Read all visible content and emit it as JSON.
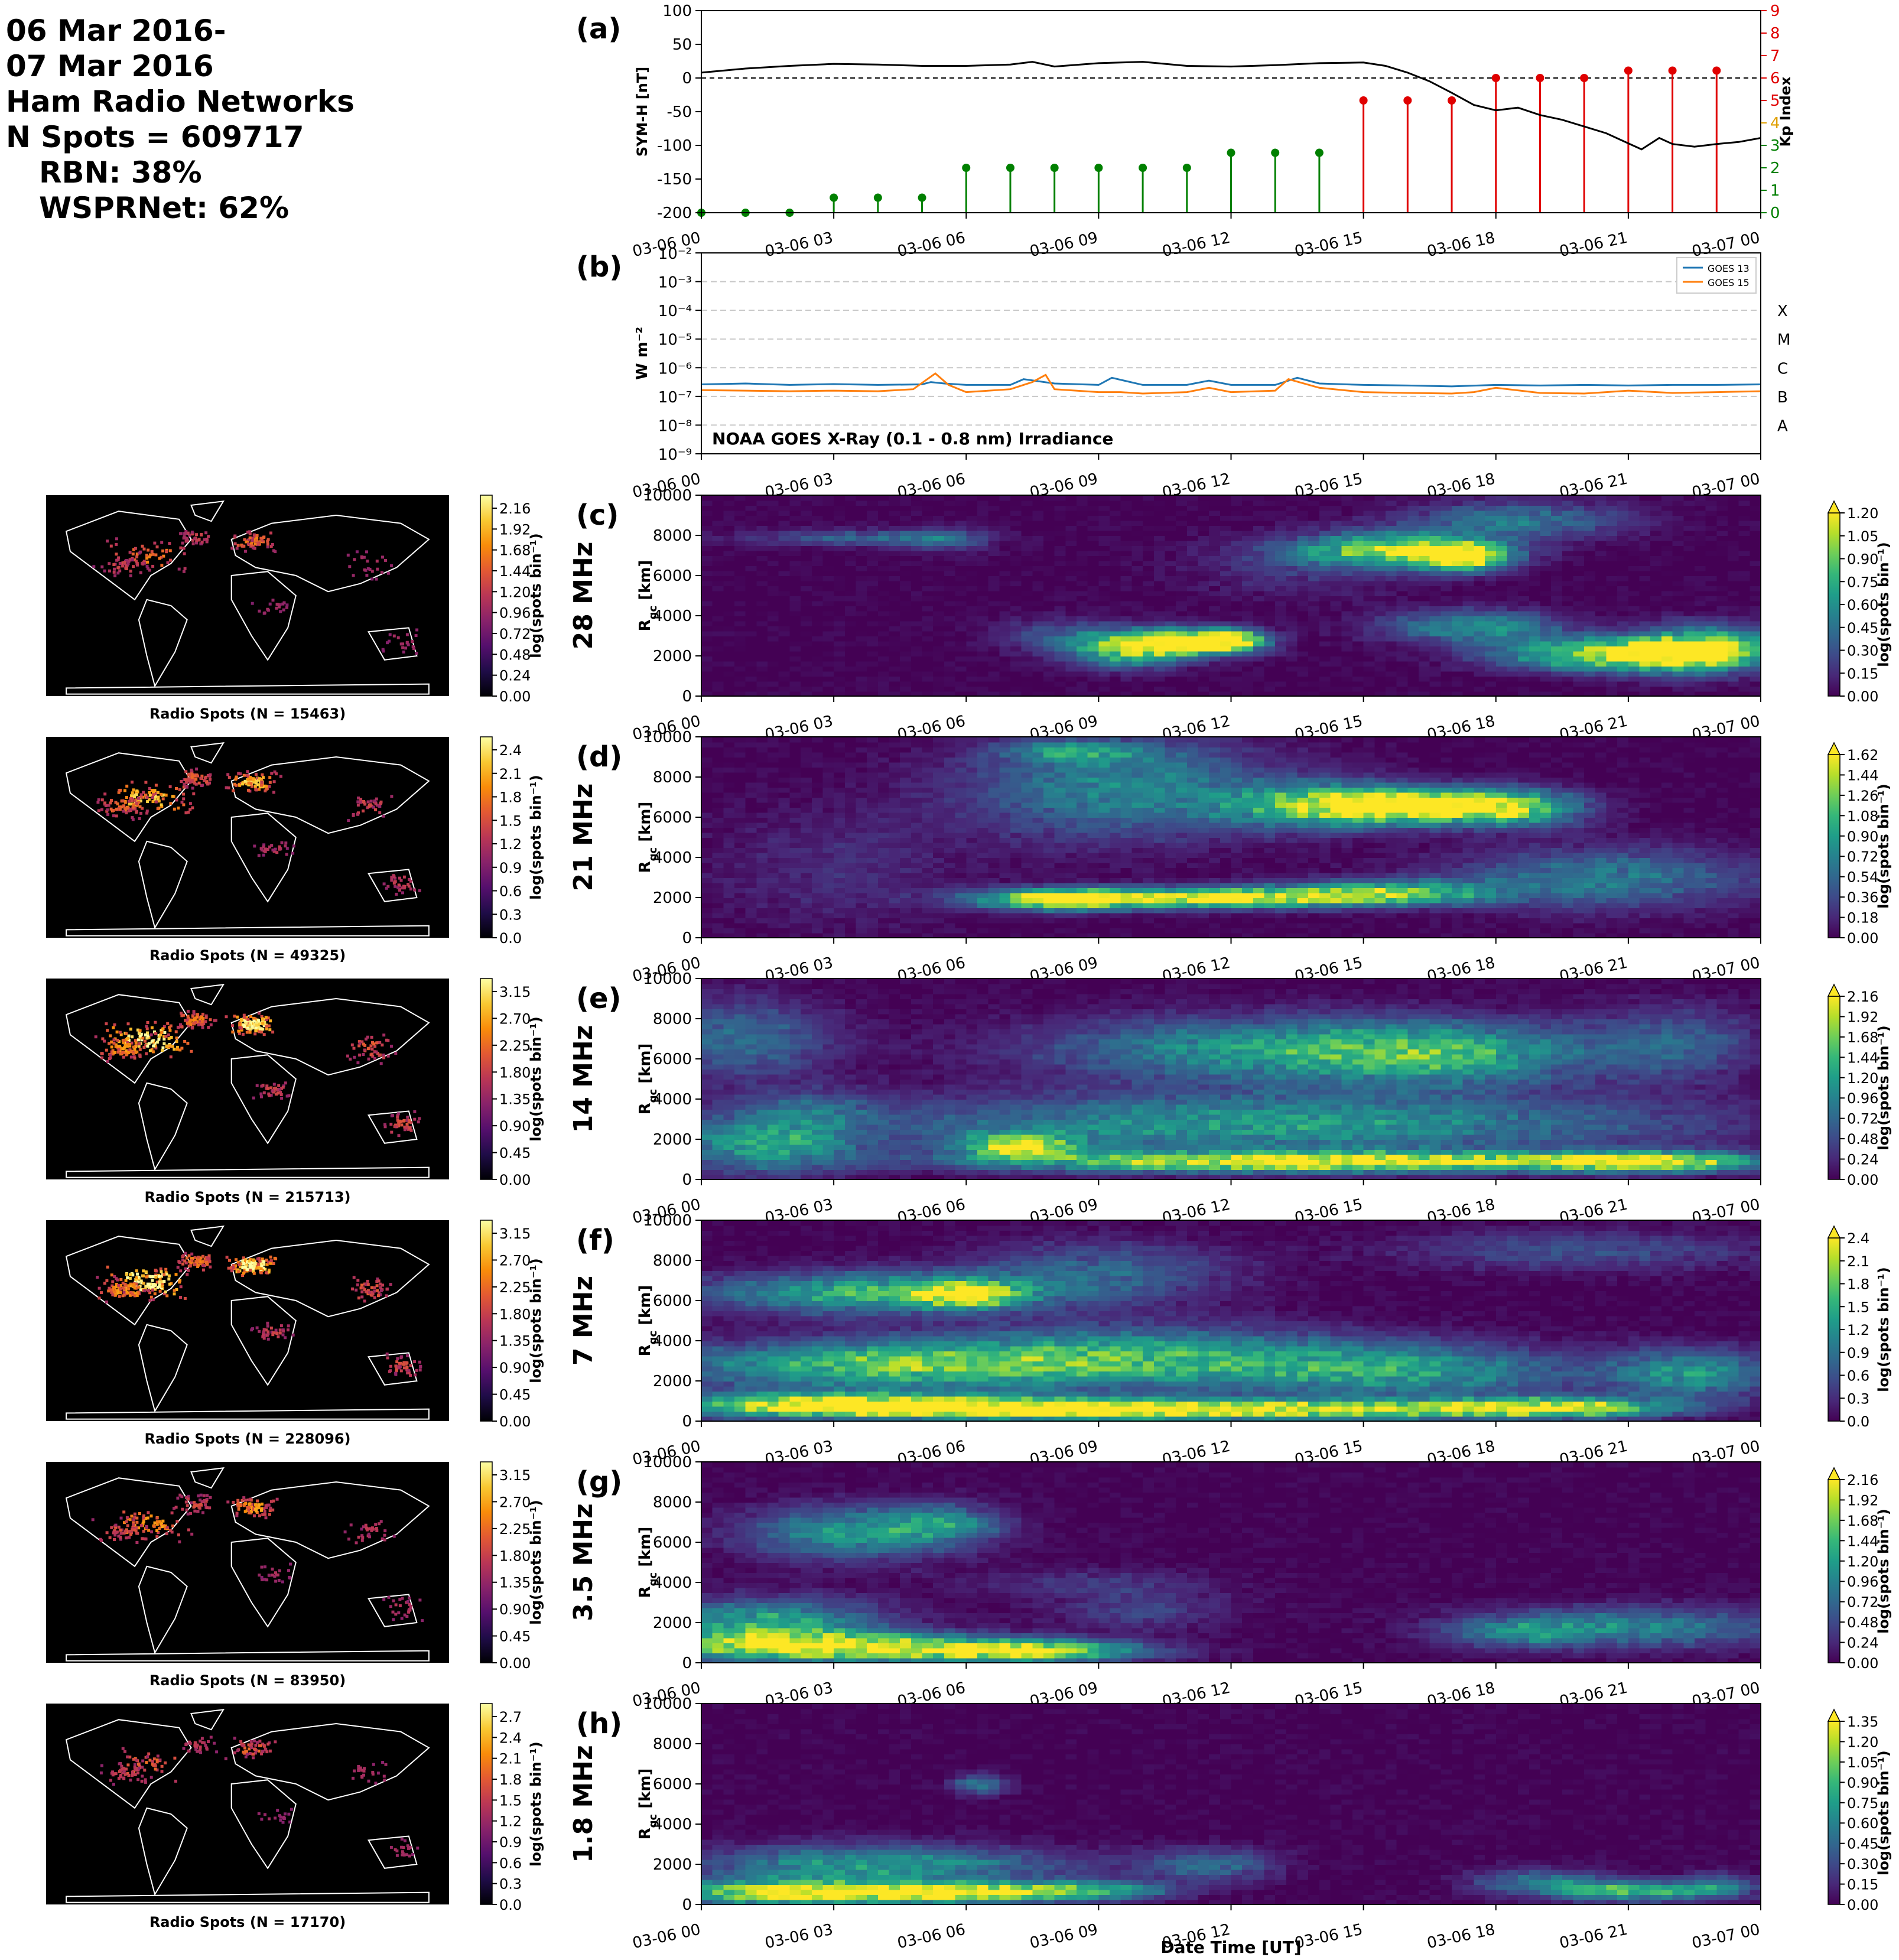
{
  "header": {
    "date_line1": "06 Mar 2016-",
    "date_line2": "07 Mar 2016",
    "network_title": "Ham Radio Networks",
    "n_spots": "N Spots = 609717",
    "rbn": "RBN: 38%",
    "wsprnet": "WSPRNet: 62%"
  },
  "time_ticks": [
    "03-06 00",
    "03-06 03",
    "03-06 06",
    "03-06 09",
    "03-06 12",
    "03-06 15",
    "03-06 18",
    "03-06 21",
    "03-07 00"
  ],
  "chart_data": [
    {
      "panel": "(a)",
      "type": "line",
      "ylabel": "SYM-H [nT]",
      "ylim": [
        -200,
        100
      ],
      "yticks": [
        100,
        50,
        0,
        -50,
        -100,
        -150,
        -200
      ],
      "x_hours": [
        0,
        1,
        2,
        3,
        4,
        5,
        6,
        7,
        7.5,
        8,
        9,
        10,
        11,
        12,
        13,
        14,
        15,
        15.5,
        16,
        16.5,
        17,
        17.5,
        18,
        18.5,
        19,
        19.5,
        20,
        20.5,
        21,
        21.3,
        21.7,
        22,
        22.5,
        23,
        23.5,
        24
      ],
      "symh": [
        8,
        14,
        18,
        21,
        20,
        18,
        18,
        20,
        24,
        17,
        22,
        24,
        18,
        17,
        19,
        22,
        23,
        18,
        8,
        -5,
        -22,
        -40,
        -48,
        -44,
        -55,
        -62,
        -72,
        -82,
        -97,
        -106,
        -89,
        -98,
        -102,
        -98,
        -95,
        -89
      ],
      "secondary_axis": {
        "label": "Kp Index",
        "ylim": [
          0,
          9
        ],
        "yticks": [
          0,
          1,
          2,
          3,
          4,
          5,
          6,
          7,
          8,
          9
        ]
      },
      "kp": [
        {
          "hour": 0,
          "value": 0
        },
        {
          "hour": 1,
          "value": 0
        },
        {
          "hour": 2,
          "value": 0
        },
        {
          "hour": 3,
          "value": 0.67
        },
        {
          "hour": 4,
          "value": 0.67
        },
        {
          "hour": 5,
          "value": 0.67
        },
        {
          "hour": 6,
          "value": 2
        },
        {
          "hour": 7,
          "value": 2
        },
        {
          "hour": 8,
          "value": 2
        },
        {
          "hour": 9,
          "value": 2
        },
        {
          "hour": 10,
          "value": 2
        },
        {
          "hour": 11,
          "value": 2
        },
        {
          "hour": 12,
          "value": 2.67
        },
        {
          "hour": 13,
          "value": 2.67
        },
        {
          "hour": 14,
          "value": 2.67
        },
        {
          "hour": 15,
          "value": 5
        },
        {
          "hour": 16,
          "value": 5
        },
        {
          "hour": 17,
          "value": 5
        },
        {
          "hour": 18,
          "value": 6
        },
        {
          "hour": 19,
          "value": 6
        },
        {
          "hour": 20,
          "value": 6
        },
        {
          "hour": 21,
          "value": 6.33
        },
        {
          "hour": 22,
          "value": 6.33
        },
        {
          "hour": 23,
          "value": 6.33
        }
      ],
      "kp_colors": {
        "quiet": "#008000",
        "storm": "#e00000"
      }
    },
    {
      "panel": "(b)",
      "type": "line",
      "title": "NOAA GOES X-Ray (0.1 - 0.8 nm) Irradiance",
      "ylabel": "W m⁻²",
      "yscale": "log",
      "ylim_exponents": [
        -9,
        -2
      ],
      "ytick_labels": [
        "10⁻²",
        "10⁻³",
        "10⁻⁴",
        "10⁻⁵",
        "10⁻⁶",
        "10⁻⁷",
        "10⁻⁸",
        "10⁻⁹"
      ],
      "flare_classes": [
        "X",
        "M",
        "C",
        "B",
        "A"
      ],
      "series": [
        {
          "name": "GOES 13",
          "color": "#1f77b4",
          "x_hours": [
            0,
            1,
            2,
            3,
            4,
            5,
            5.2,
            5.5,
            6,
            7,
            7.3,
            8,
            9,
            9.3,
            10,
            11,
            11.5,
            12,
            13,
            13.5,
            14,
            15,
            16,
            17,
            18,
            19,
            20,
            21,
            22,
            23,
            24
          ],
          "log10": [
            -6.58,
            -6.55,
            -6.6,
            -6.57,
            -6.6,
            -6.58,
            -6.5,
            -6.55,
            -6.6,
            -6.6,
            -6.4,
            -6.55,
            -6.6,
            -6.35,
            -6.6,
            -6.6,
            -6.45,
            -6.6,
            -6.6,
            -6.35,
            -6.55,
            -6.6,
            -6.62,
            -6.65,
            -6.6,
            -6.62,
            -6.6,
            -6.62,
            -6.6,
            -6.6,
            -6.58
          ]
        },
        {
          "name": "GOES 15",
          "color": "#ff7f0e",
          "x_hours": [
            0,
            1,
            2,
            3,
            4,
            4.8,
            5.3,
            5.6,
            6,
            7,
            7.5,
            7.8,
            8,
            9,
            9.5,
            10,
            11,
            11.5,
            12,
            13,
            13.3,
            14,
            15,
            16,
            17,
            17.5,
            18,
            19,
            20,
            20.5,
            21,
            22,
            23,
            24
          ],
          "log10": [
            -6.78,
            -6.8,
            -6.82,
            -6.8,
            -6.82,
            -6.75,
            -6.2,
            -6.6,
            -6.85,
            -6.75,
            -6.5,
            -6.25,
            -6.75,
            -6.85,
            -6.85,
            -6.9,
            -6.85,
            -6.7,
            -6.85,
            -6.8,
            -6.4,
            -6.7,
            -6.85,
            -6.88,
            -6.9,
            -6.85,
            -6.7,
            -6.88,
            -6.9,
            -6.85,
            -6.8,
            -6.88,
            -6.85,
            -6.82
          ]
        }
      ]
    },
    {
      "panel": "(c)",
      "type": "heatmap",
      "freq": "28 MHz",
      "ylabel": "R_gc [km]",
      "ylim": [
        0,
        10000
      ],
      "yticks": [
        0,
        2000,
        4000,
        6000,
        8000,
        10000
      ],
      "cbar_label": "log(spots bin⁻¹)",
      "cbar_ticks": [
        "0.00",
        "0.15",
        "0.30",
        "0.45",
        "0.60",
        "0.75",
        "0.90",
        "1.05",
        "1.20"
      ],
      "cbar_extend": true,
      "map_ticks": [
        "0.00",
        "0.24",
        "0.48",
        "0.72",
        "0.96",
        "1.20",
        "1.44",
        "1.68",
        "1.92",
        "2.16"
      ],
      "map_caption": "Radio Spots (N = 15463)",
      "map_activity": 0.45,
      "blobs": [
        [
          15.8,
          7300,
          2.2,
          800,
          0.85
        ],
        [
          17.3,
          6900,
          1.0,
          700,
          0.8
        ],
        [
          18.5,
          8800,
          2.5,
          900,
          0.4
        ],
        [
          10.8,
          2700,
          1.5,
          700,
          0.95
        ],
        [
          12.0,
          2800,
          0.8,
          500,
          0.8
        ],
        [
          9.6,
          2200,
          1.2,
          800,
          0.55
        ],
        [
          8.2,
          3000,
          1.5,
          900,
          0.25
        ],
        [
          17.5,
          3500,
          2.0,
          800,
          0.5
        ],
        [
          20.8,
          2100,
          2.5,
          800,
          1.0
        ],
        [
          22.8,
          2400,
          1.5,
          1100,
          0.75
        ],
        [
          3.5,
          7900,
          2.5,
          400,
          0.3
        ],
        [
          5.5,
          7800,
          1.0,
          600,
          0.25
        ],
        [
          13.5,
          6500,
          2.5,
          1500,
          0.15
        ]
      ]
    },
    {
      "panel": "(d)",
      "type": "heatmap",
      "freq": "21 MHz",
      "ylabel": "R_gc [km]",
      "ylim": [
        0,
        10000
      ],
      "yticks": [
        0,
        2000,
        4000,
        6000,
        8000,
        10000
      ],
      "cbar_label": "log(spots bin⁻¹)",
      "cbar_ticks": [
        "0.00",
        "0.18",
        "0.36",
        "0.54",
        "0.72",
        "0.90",
        "1.08",
        "1.26",
        "1.44",
        "1.62"
      ],
      "cbar_extend": true,
      "map_ticks": [
        "0.0",
        "0.3",
        "0.6",
        "0.9",
        "1.2",
        "1.5",
        "1.8",
        "2.1",
        "2.4"
      ],
      "map_caption": "Radio Spots (N = 49325)",
      "map_activity": 0.7,
      "blobs": [
        [
          11.2,
          2000,
          3.8,
          500,
          1.0
        ],
        [
          15.5,
          2300,
          2.5,
          600,
          0.65
        ],
        [
          8,
          1900,
          1.5,
          500,
          0.75
        ],
        [
          16.2,
          6600,
          2.0,
          800,
          1.0
        ],
        [
          14.0,
          6600,
          2.2,
          1100,
          0.65
        ],
        [
          18.5,
          6500,
          1.5,
          900,
          0.7
        ],
        [
          9.5,
          7500,
          3.5,
          2500,
          0.45
        ],
        [
          20.5,
          3000,
          3.5,
          1500,
          0.4
        ],
        [
          8.5,
          9300,
          1.5,
          500,
          0.4
        ],
        [
          3,
          3500,
          3,
          3000,
          0.12
        ]
      ]
    },
    {
      "panel": "(e)",
      "type": "heatmap",
      "freq": "14 MHz",
      "ylabel": "R_gc [km]",
      "ylim": [
        0,
        10000
      ],
      "yticks": [
        0,
        2000,
        4000,
        6000,
        8000,
        10000
      ],
      "cbar_label": "log(spots bin⁻¹)",
      "cbar_ticks": [
        "0.00",
        "0.24",
        "0.48",
        "0.72",
        "0.96",
        "1.20",
        "1.44",
        "1.68",
        "1.92",
        "2.16"
      ],
      "cbar_extend": true,
      "map_ticks": [
        "0.00",
        "0.45",
        "0.90",
        "1.35",
        "1.80",
        "2.25",
        "2.70",
        "3.15"
      ],
      "map_caption": "Radio Spots (N = 215713)",
      "map_activity": 0.9,
      "blobs": [
        [
          14,
          900,
          7,
          500,
          1.0
        ],
        [
          21.5,
          900,
          2.5,
          500,
          0.8
        ],
        [
          7.2,
          1700,
          1.3,
          600,
          0.85
        ],
        [
          13,
          2800,
          9,
          1500,
          0.55
        ],
        [
          13,
          6500,
          5,
          1600,
          0.55
        ],
        [
          17,
          6200,
          3,
          1500,
          0.45
        ],
        [
          1.5,
          1800,
          2,
          1400,
          0.55
        ],
        [
          1,
          7000,
          2,
          2000,
          0.35
        ],
        [
          22,
          6800,
          2,
          1800,
          0.3
        ],
        [
          2.5,
          3600,
          1.5,
          900,
          0.2
        ]
      ]
    },
    {
      "panel": "(f)",
      "type": "heatmap",
      "freq": "7 MHz",
      "ylabel": "R_gc [km]",
      "ylim": [
        0,
        10000
      ],
      "yticks": [
        0,
        2000,
        4000,
        6000,
        8000,
        10000
      ],
      "cbar_label": "log(spots bin⁻¹)",
      "cbar_ticks": [
        "0.0",
        "0.3",
        "0.6",
        "0.9",
        "1.2",
        "1.5",
        "1.8",
        "2.1",
        "2.4"
      ],
      "cbar_extend": true,
      "map_ticks": [
        "0.00",
        "0.45",
        "0.90",
        "1.35",
        "1.80",
        "2.25",
        "2.70",
        "3.15"
      ],
      "map_caption": "Radio Spots (N = 228096)",
      "map_activity": 0.9,
      "blobs": [
        [
          3,
          800,
          4,
          600,
          1.0
        ],
        [
          8,
          600,
          4,
          500,
          0.9
        ],
        [
          14,
          600,
          5,
          500,
          0.85
        ],
        [
          19.5,
          700,
          2.5,
          500,
          0.8
        ],
        [
          4,
          2800,
          5,
          1200,
          0.65
        ],
        [
          10,
          3200,
          5,
          1500,
          0.55
        ],
        [
          4,
          6400,
          4,
          1000,
          0.65
        ],
        [
          6,
          6300,
          1,
          600,
          0.75
        ],
        [
          16,
          2500,
          4,
          1300,
          0.5
        ],
        [
          22.5,
          2400,
          1.8,
          1200,
          0.5
        ],
        [
          20,
          8500,
          4,
          1000,
          0.25
        ],
        [
          9,
          7500,
          3,
          1500,
          0.3
        ]
      ]
    },
    {
      "panel": "(g)",
      "type": "heatmap",
      "freq": "3.5 MHz",
      "ylabel": "R_gc [km]",
      "ylim": [
        0,
        10000
      ],
      "yticks": [
        0,
        2000,
        4000,
        6000,
        8000,
        10000
      ],
      "cbar_label": "log(spots bin⁻¹)",
      "cbar_ticks": [
        "0.00",
        "0.24",
        "0.48",
        "0.72",
        "0.96",
        "1.20",
        "1.44",
        "1.68",
        "1.92",
        "2.16"
      ],
      "cbar_extend": true,
      "map_ticks": [
        "0.00",
        "0.45",
        "0.90",
        "1.35",
        "1.80",
        "2.25",
        "2.70",
        "3.15"
      ],
      "map_caption": "Radio Spots (N = 83950)",
      "map_activity": 0.55,
      "blobs": [
        [
          3,
          800,
          4,
          700,
          0.95
        ],
        [
          7.5,
          600,
          2.5,
          500,
          0.85
        ],
        [
          1.5,
          2000,
          2.5,
          1200,
          0.6
        ],
        [
          3.5,
          6500,
          2.5,
          1300,
          0.5
        ],
        [
          5.5,
          7000,
          1.3,
          900,
          0.35
        ],
        [
          21,
          1800,
          3.5,
          1000,
          0.45
        ],
        [
          18.5,
          1500,
          1.5,
          700,
          0.3
        ],
        [
          10,
          2600,
          2,
          900,
          0.2
        ],
        [
          9,
          4000,
          3,
          700,
          0.15
        ]
      ]
    },
    {
      "panel": "(h)",
      "type": "heatmap",
      "freq": "1.8 MHz",
      "xlabel": "Date Time [UT]",
      "ylabel": "R_gc [km]",
      "ylim": [
        0,
        10000
      ],
      "yticks": [
        0,
        2000,
        4000,
        6000,
        8000,
        10000
      ],
      "cbar_label": "log(spots bin⁻¹)",
      "cbar_ticks": [
        "0.00",
        "0.15",
        "0.30",
        "0.45",
        "0.60",
        "0.75",
        "0.90",
        "1.05",
        "1.20",
        "1.35"
      ],
      "cbar_extend": true,
      "map_ticks": [
        "0.0",
        "0.3",
        "0.6",
        "0.9",
        "1.2",
        "1.5",
        "1.8",
        "2.1",
        "2.4",
        "2.7"
      ],
      "map_caption": "Radio Spots (N = 17170)",
      "map_activity": 0.4,
      "blobs": [
        [
          2,
          600,
          2.5,
          600,
          1.0
        ],
        [
          5.5,
          600,
          2,
          500,
          0.9
        ],
        [
          8.5,
          700,
          2,
          500,
          0.7
        ],
        [
          4,
          2000,
          4,
          1000,
          0.55
        ],
        [
          11.5,
          2000,
          1.5,
          800,
          0.35
        ],
        [
          6.3,
          6000,
          0.6,
          500,
          0.4
        ],
        [
          21,
          700,
          1.5,
          500,
          0.7
        ],
        [
          19,
          1100,
          1.5,
          700,
          0.4
        ],
        [
          23,
          900,
          1,
          600,
          0.4
        ]
      ]
    }
  ]
}
